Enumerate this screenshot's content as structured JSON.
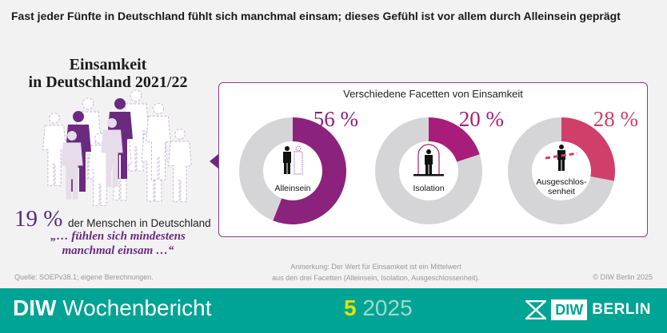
{
  "headline": "Fast jeder Fünfte in Deutschland fühlt sich manchmal einsam; dieses Gefühl ist vor allem durch Alleinsein geprägt",
  "left": {
    "title_line1": "Einsamkeit",
    "title_line2": "in Deutschland 2021/22",
    "percent": "19 %",
    "percent_text": "der Menschen in Deutschland",
    "quote_line1": "„… fühlen sich mindestens",
    "quote_line2": "manchmal einsam …“",
    "share_value": 19
  },
  "chart_data": {
    "type": "pie",
    "title": "Verschiedene Facetten von Einsamkeit",
    "variant": "donut",
    "categories": [
      "Alleinsein",
      "Isolation",
      "Ausgeschlossenheit"
    ],
    "values": [
      56,
      20,
      28
    ],
    "value_labels": [
      "56 %",
      "20 %",
      "28 %"
    ],
    "center_labels": [
      [
        "Alleinsein"
      ],
      [
        "Isolation"
      ],
      [
        "Ausgeschlos-",
        "senheit"
      ]
    ],
    "icons": [
      "person-alone-icon",
      "person-isolation-icon",
      "person-excluded-icon"
    ],
    "colors": [
      "#8b237d",
      "#a81d79",
      "#cf3f6a"
    ],
    "remainder_color": "#d5d5d7"
  },
  "source": "Quelle: SOEPv38.1; eigene Berechnungen.",
  "note_line1": "Anmerkung: Der Wert für Einsamkeit ist ein Mittelwert",
  "note_line2": "aus den drei Facetten (Alleinsein, Isolation, Ausgeschlossenheit).",
  "copyright": "© DIW Berlin 2025",
  "footer": {
    "brand_bold": "DIW",
    "brand": " Wochenbericht",
    "issue": "5",
    "year": " 2025",
    "logo_diw": "DIW",
    "logo_berlin": "BERLIN",
    "color": "#00a494"
  }
}
